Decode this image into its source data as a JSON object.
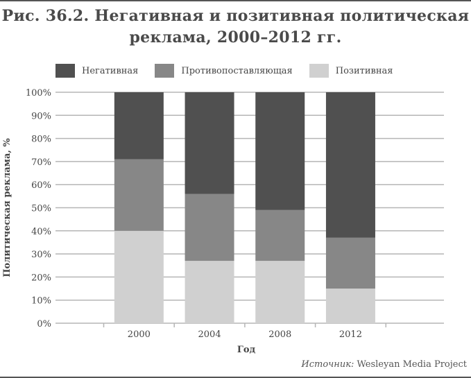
{
  "chart_data": {
    "type": "bar",
    "stacked": true,
    "title": "Рис. 36.2. Негативная и позитивная политическая реклама, 2000–2012 гг.",
    "title_lines": [
      "Рис. 36.2. Негативная и позитивная политическая",
      "реклама, 2000–2012 гг."
    ],
    "xlabel": "Год",
    "ylabel": "Политическая реклама, %",
    "ylim": [
      0,
      100
    ],
    "yticks": [
      "0%",
      "10%",
      "20%",
      "30%",
      "40%",
      "50%",
      "60%",
      "70%",
      "80%",
      "90%",
      "100%"
    ],
    "categories": [
      "2000",
      "2004",
      "2008",
      "2012"
    ],
    "series": [
      {
        "name": "Позитивная",
        "color": "#d0d0d0",
        "values": [
          40,
          27,
          27,
          15
        ]
      },
      {
        "name": "Противопоставляющая",
        "color": "#878787",
        "values": [
          31,
          29,
          22,
          22
        ]
      },
      {
        "name": "Негативная",
        "color": "#505050",
        "values": [
          29,
          44,
          51,
          63
        ]
      }
    ],
    "legend_order": [
      "Негативная",
      "Противопоставляющая",
      "Позитивная"
    ],
    "legend": "top",
    "grid": true
  },
  "source": {
    "label": "Источник:",
    "text": "Wesleyan Media Project"
  }
}
